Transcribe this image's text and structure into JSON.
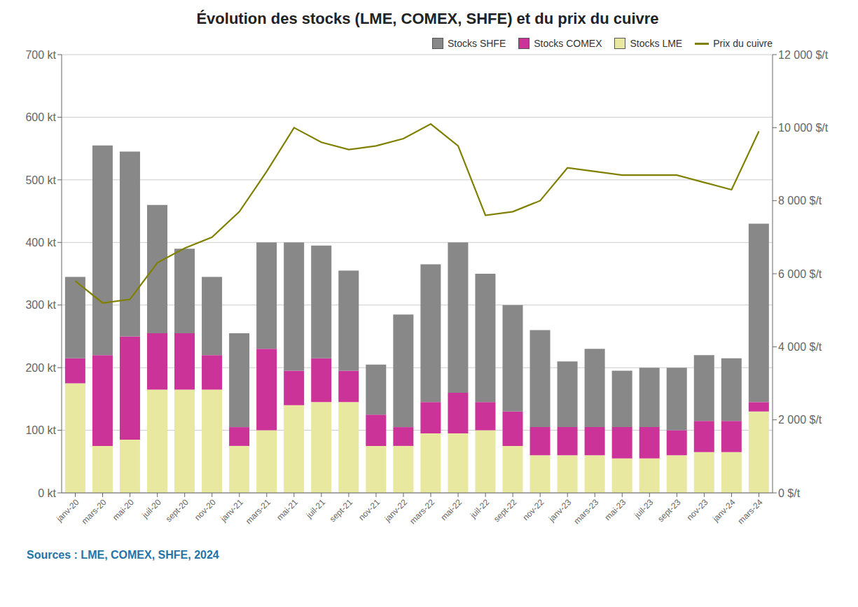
{
  "chart_data": {
    "type": "bar",
    "title": "Évolution des stocks (LME, COMEX, SHFE) et du prix du cuivre",
    "annotations": [
      "Sources : LME, COMEX, SHFE, 2024"
    ],
    "categories": [
      "janv-20",
      "mars-20",
      "mai-20",
      "juil-20",
      "sept-20",
      "nov-20",
      "janv-21",
      "mars-21",
      "mai-21",
      "juil-21",
      "sept-21",
      "nov-21",
      "janv-22",
      "mars-22",
      "mai-22",
      "juil-22",
      "sept-22",
      "nov-22",
      "janv-23",
      "mars-23",
      "mai-23",
      "juil-23",
      "sept-23",
      "nov-23",
      "janv-24",
      "mars-24"
    ],
    "series": [
      {
        "name": "Stocks LME",
        "color": "#E8E8A0",
        "values": [
          175,
          75,
          85,
          165,
          165,
          165,
          75,
          100,
          140,
          145,
          145,
          75,
          75,
          95,
          95,
          100,
          75,
          60,
          60,
          60,
          55,
          55,
          60,
          65,
          65,
          130
        ]
      },
      {
        "name": "Stocks COMEX",
        "color": "#CC3399",
        "values": [
          40,
          145,
          165,
          90,
          90,
          55,
          30,
          130,
          55,
          70,
          50,
          50,
          30,
          50,
          65,
          45,
          55,
          45,
          45,
          45,
          50,
          50,
          40,
          50,
          50,
          15
        ]
      },
      {
        "name": "Stocks SHFE",
        "color": "#888888",
        "values": [
          130,
          335,
          295,
          205,
          135,
          125,
          150,
          170,
          205,
          180,
          160,
          80,
          180,
          220,
          240,
          205,
          170,
          155,
          105,
          125,
          90,
          95,
          100,
          105,
          100,
          285
        ]
      },
      {
        "name": "Prix du cuivre",
        "type": "line",
        "axis": "y2",
        "color": "#808000",
        "values": [
          5800,
          5200,
          5300,
          6300,
          6700,
          7000,
          7700,
          8800,
          10000,
          9600,
          9400,
          9500,
          9700,
          10100,
          9500,
          7600,
          7700,
          8000,
          8900,
          8800,
          8700,
          8700,
          8700,
          8500,
          8300,
          9900
        ]
      }
    ],
    "stacked": true,
    "grid": true,
    "legend": "upper right",
    "ylim": [
      0,
      700
    ],
    "yticks": [
      {
        "value": 0,
        "label": "0 kt"
      },
      {
        "value": 100,
        "label": "100 kt"
      },
      {
        "value": 200,
        "label": "200 kt"
      },
      {
        "value": 300,
        "label": "300 kt"
      },
      {
        "value": 400,
        "label": "400 kt"
      },
      {
        "value": 500,
        "label": "500 kt"
      },
      {
        "value": 600,
        "label": "600 kt"
      },
      {
        "value": 700,
        "label": "700 kt"
      }
    ],
    "y2lim": [
      0,
      12000
    ],
    "y2ticks": [
      {
        "value": 0,
        "label": "0 $/t"
      },
      {
        "value": 2000,
        "label": "2 000 $/t"
      },
      {
        "value": 4000,
        "label": "4 000 $/t"
      },
      {
        "value": 6000,
        "label": "6 000 $/t"
      },
      {
        "value": 8000,
        "label": "8 000 $/t"
      },
      {
        "value": 10000,
        "label": "10 000 $/t"
      },
      {
        "value": 12000,
        "label": "12 000 $/t"
      }
    ]
  }
}
